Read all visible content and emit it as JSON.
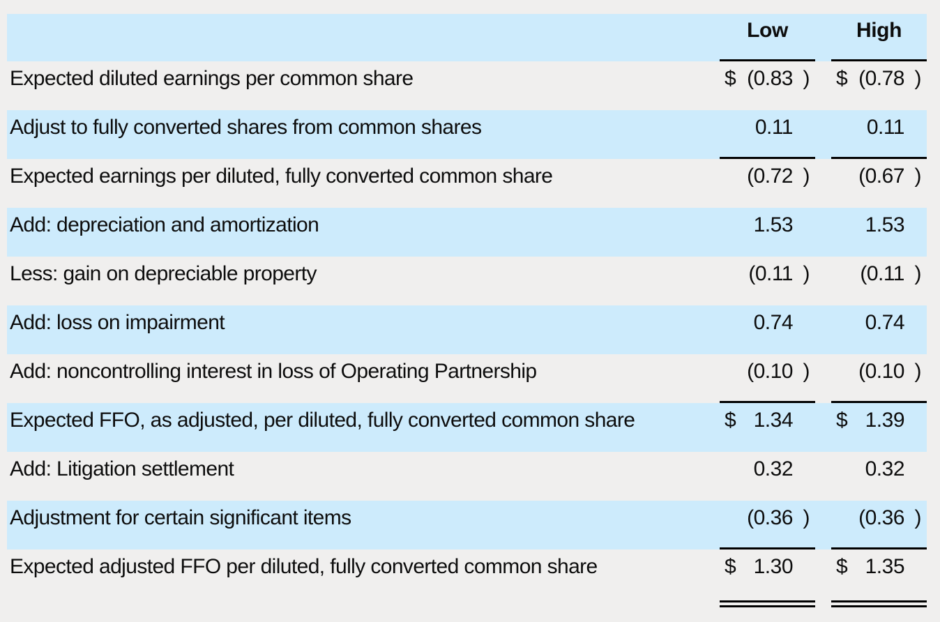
{
  "table": {
    "header": {
      "low": "Low",
      "high": "High"
    },
    "rows": [
      {
        "label": "Expected diluted earnings per common share",
        "low": {
          "currency": "$",
          "number": "(0.83",
          "paren": ")"
        },
        "high": {
          "currency": "$",
          "number": "(0.78",
          "paren": ")"
        },
        "highlight": false,
        "rule_below": false,
        "double_rule_below": false
      },
      {
        "label": "Adjust to fully converted shares from common shares",
        "low": {
          "currency": "",
          "number": "0.11",
          "paren": ""
        },
        "high": {
          "currency": "",
          "number": "0.11",
          "paren": ""
        },
        "highlight": true,
        "rule_below": true,
        "double_rule_below": false
      },
      {
        "label": "Expected earnings per diluted, fully converted common share",
        "low": {
          "currency": "",
          "number": "(0.72",
          "paren": ")"
        },
        "high": {
          "currency": "",
          "number": "(0.67",
          "paren": ")"
        },
        "highlight": false,
        "rule_below": false,
        "double_rule_below": false
      },
      {
        "label": "Add: depreciation and amortization",
        "low": {
          "currency": "",
          "number": "1.53",
          "paren": ""
        },
        "high": {
          "currency": "",
          "number": "1.53",
          "paren": ""
        },
        "highlight": true,
        "rule_below": false,
        "double_rule_below": false
      },
      {
        "label": "Less: gain on depreciable property",
        "low": {
          "currency": "",
          "number": "(0.11",
          "paren": ")"
        },
        "high": {
          "currency": "",
          "number": "(0.11",
          "paren": ")"
        },
        "highlight": false,
        "rule_below": false,
        "double_rule_below": false
      },
      {
        "label": "Add: loss on impairment",
        "low": {
          "currency": "",
          "number": "0.74",
          "paren": ""
        },
        "high": {
          "currency": "",
          "number": "0.74",
          "paren": ""
        },
        "highlight": true,
        "rule_below": false,
        "double_rule_below": false
      },
      {
        "label": "Add: noncontrolling interest in loss of Operating Partnership",
        "low": {
          "currency": "",
          "number": "(0.10",
          "paren": ")"
        },
        "high": {
          "currency": "",
          "number": "(0.10",
          "paren": ")"
        },
        "highlight": false,
        "rule_below": true,
        "double_rule_below": false
      },
      {
        "label": "Expected FFO, as adjusted, per diluted, fully converted common share",
        "low": {
          "currency": "$",
          "number": "1.34",
          "paren": ""
        },
        "high": {
          "currency": "$",
          "number": "1.39",
          "paren": ""
        },
        "highlight": true,
        "rule_below": false,
        "double_rule_below": false
      },
      {
        "label": "Add: Litigation settlement",
        "low": {
          "currency": "",
          "number": "0.32",
          "paren": ""
        },
        "high": {
          "currency": "",
          "number": "0.32",
          "paren": ""
        },
        "highlight": false,
        "rule_below": false,
        "double_rule_below": false
      },
      {
        "label": "Adjustment for certain significant items",
        "low": {
          "currency": "",
          "number": "(0.36",
          "paren": ")"
        },
        "high": {
          "currency": "",
          "number": "(0.36",
          "paren": ")"
        },
        "highlight": true,
        "rule_below": true,
        "double_rule_below": false
      },
      {
        "label": "Expected adjusted FFO per diluted, fully converted common share",
        "low": {
          "currency": "$",
          "number": "1.30",
          "paren": ""
        },
        "high": {
          "currency": "$",
          "number": "1.35",
          "paren": ""
        },
        "highlight": false,
        "rule_below": false,
        "double_rule_below": true
      }
    ],
    "colors": {
      "highlight": "#cdebfc",
      "background": "#f0efee",
      "rule": "#000000",
      "text": "#0d0d0d"
    }
  }
}
